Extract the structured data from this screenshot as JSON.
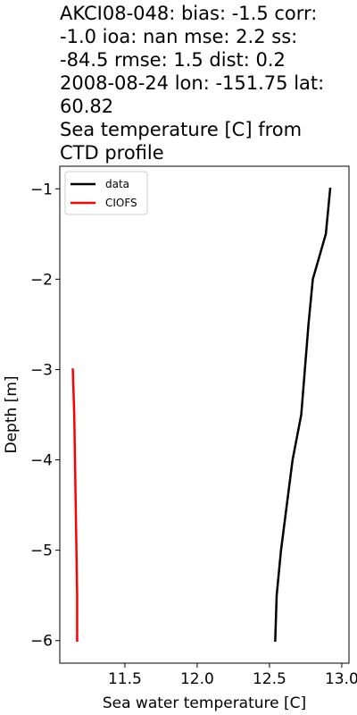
{
  "title_lines": [
    "AKCI08-048: bias: -1.5  corr:",
    "-1.0  ioa: nan  mse: 2.2  ss:",
    "-84.5  rmse: 1.5  dist: 0.2",
    "2008-08-24 lon: -151.75 lat:",
    "60.82",
    "Sea temperature [C] from",
    "CTD profile"
  ],
  "chart_data": {
    "type": "line",
    "xlabel": "Sea water temperature [C]",
    "ylabel": "Depth [m]",
    "xlim": [
      11.05,
      13.05
    ],
    "ylim": [
      -6.25,
      -0.75
    ],
    "xticks": [
      11.5,
      12.0,
      12.5,
      13.0
    ],
    "xtick_labels": [
      "11.5",
      "12.0",
      "12.5",
      "13.0"
    ],
    "yticks": [
      -1,
      -2,
      -3,
      -4,
      -5,
      -6
    ],
    "ytick_labels": [
      "−1",
      "−2",
      "−3",
      "−4",
      "−5",
      "−6"
    ],
    "grid": false,
    "legend_position": "top-left",
    "series": [
      {
        "name": "data",
        "color": "#000000",
        "x": [
          12.92,
          12.89,
          12.8,
          12.77,
          12.72,
          12.66,
          12.62,
          12.58,
          12.55,
          12.54
        ],
        "y": [
          -1.0,
          -1.5,
          -2.0,
          -2.5,
          -3.5,
          -4.0,
          -4.5,
          -5.0,
          -5.5,
          -6.0
        ]
      },
      {
        "name": "CIOFS",
        "color": "#ff0000",
        "x": [
          11.14,
          11.15,
          11.16,
          11.17,
          11.17
        ],
        "y": [
          -3.0,
          -3.5,
          -4.5,
          -5.5,
          -6.0
        ]
      }
    ]
  }
}
